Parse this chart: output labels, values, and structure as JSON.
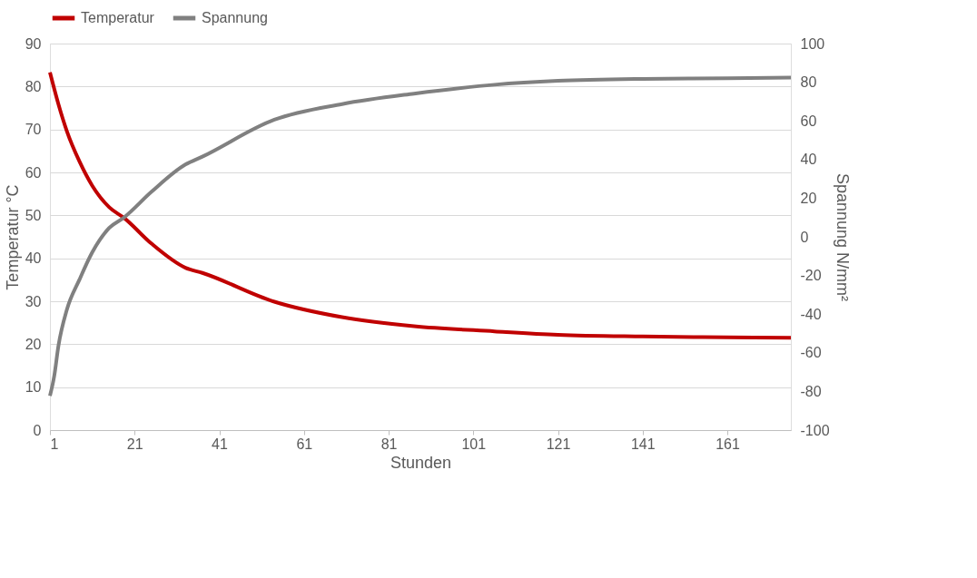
{
  "chart_data": {
    "type": "line",
    "xlabel": "Stunden",
    "ylabel": "Temperatur °C",
    "y2label": "Spannung N/mm²",
    "xlim": [
      1,
      176
    ],
    "xticks": [
      1,
      21,
      41,
      61,
      81,
      101,
      121,
      141,
      161
    ],
    "ylim": [
      0,
      90
    ],
    "yticks": [
      0,
      10,
      20,
      30,
      40,
      50,
      60,
      70,
      80,
      90
    ],
    "y2lim": [
      -100,
      100
    ],
    "y2ticks": [
      -100,
      -80,
      -60,
      -40,
      -20,
      0,
      20,
      40,
      60,
      80,
      100
    ],
    "grid": "y",
    "legend": "top",
    "line_style": "solid",
    "marker": "none",
    "series": [
      {
        "name": "Temperatur",
        "color": "#c00000",
        "x": [
          1,
          3,
          5,
          8,
          11,
          15,
          18.5,
          25,
          33,
          37,
          54,
          70,
          87,
          106,
          121,
          141,
          161,
          176
        ],
        "values": [
          83.3,
          75.9,
          69.6,
          62.5,
          56.9,
          51.9,
          49.4,
          43.4,
          37.8,
          36.6,
          29.9,
          26.3,
          24.2,
          23,
          22.2,
          21.8,
          21.6,
          21.5
        ]
      },
      {
        "name": "Spannung",
        "color": "#808080",
        "axis": "y2",
        "x": [
          1,
          2,
          3,
          5,
          8,
          11,
          15,
          18.5,
          25,
          33,
          37,
          54,
          70,
          87,
          106,
          121,
          141,
          161,
          176
        ],
        "values": [
          -82.3,
          -72.2,
          -56.5,
          -37.7,
          -22,
          -8,
          4.6,
          10,
          23.3,
          37.4,
          41.5,
          60.6,
          68.7,
          74.1,
          78.7,
          80.7,
          81.7,
          82,
          82.4
        ]
      }
    ]
  }
}
